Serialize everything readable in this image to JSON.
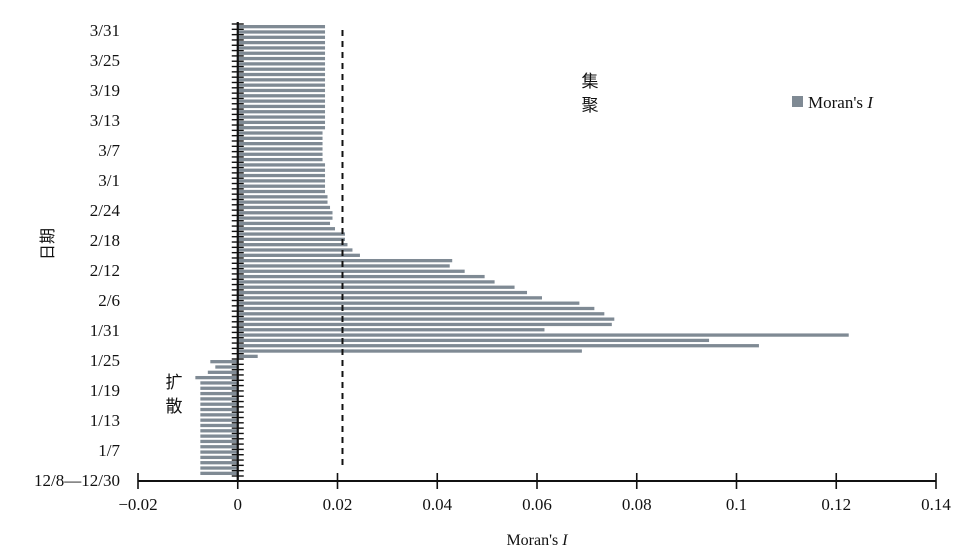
{
  "chart_data": {
    "type": "bar",
    "orientation": "horizontal",
    "xlabel_prefix": "Moran's",
    "xlabel_italic": "I",
    "ylabel": "日期",
    "legend": {
      "name_prefix": "Moran's",
      "name_italic": "I",
      "color": "#7f8a94",
      "placement": "top-right"
    },
    "xlim": [
      -0.02,
      0.14
    ],
    "xticks": [
      "−0.02",
      "0",
      "0.02",
      "0.04",
      "0.06",
      "0.08",
      "0.1",
      "0.12",
      "0.14"
    ],
    "xtick_values": [
      -0.02,
      0,
      0.02,
      0.04,
      0.06,
      0.08,
      0.1,
      0.12,
      0.14
    ],
    "yticks": [
      "12/8—12/30",
      "1/7",
      "1/13",
      "1/19",
      "1/25",
      "1/31",
      "2/6",
      "2/12",
      "2/18",
      "2/24",
      "3/1",
      "3/7",
      "3/13",
      "3/19",
      "3/25",
      "3/31"
    ],
    "threshold_line": {
      "value": 0.021,
      "style": "dashed"
    },
    "annotations": {
      "cluster": [
        "集",
        "聚"
      ],
      "diffuse": [
        "扩",
        "散"
      ]
    },
    "values": [
      -0.0075,
      -0.0075,
      -0.0075,
      -0.0075,
      -0.0075,
      -0.0075,
      -0.0075,
      -0.0075,
      -0.0075,
      -0.0075,
      -0.0075,
      -0.0075,
      -0.0075,
      -0.0075,
      -0.0075,
      -0.0075,
      -0.0075,
      -0.0075,
      -0.0085,
      -0.006,
      -0.0045,
      -0.0055,
      0.004,
      0.069,
      0.1045,
      0.0945,
      0.1225,
      0.0615,
      0.075,
      0.0755,
      0.0735,
      0.0715,
      0.0685,
      0.061,
      0.058,
      0.0555,
      0.0515,
      0.0495,
      0.0455,
      0.0425,
      0.043,
      0.0245,
      0.023,
      0.022,
      0.0215,
      0.0215,
      0.0195,
      0.0185,
      0.019,
      0.019,
      0.0185,
      0.018,
      0.018,
      0.0175,
      0.0175,
      0.0175,
      0.0175,
      0.0175,
      0.0175,
      0.017,
      0.017,
      0.017,
      0.017,
      0.017,
      0.017,
      0.0175,
      0.0175,
      0.0175,
      0.0175,
      0.0175,
      0.0175,
      0.0175,
      0.0175,
      0.0175,
      0.0175,
      0.0175,
      0.0175,
      0.0175,
      0.0175,
      0.0175,
      0.0175,
      0.0175,
      0.0175,
      0.0175,
      0.0175
    ]
  }
}
